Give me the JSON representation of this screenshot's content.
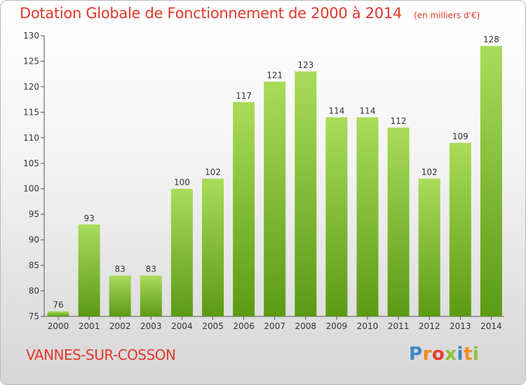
{
  "header": {
    "title": "Dotation Globale de Fonctionnement de 2000 à 2014",
    "unit": "(en milliers d'€)"
  },
  "footer": {
    "commune": "VANNES-SUR-COSSON",
    "logo": [
      "P",
      "r",
      "o",
      "x",
      "i",
      "t",
      "i"
    ]
  },
  "colors": {
    "title": "#e2372b",
    "bar_light": "#a9dc5a",
    "bar_dark": "#5c9a14",
    "axis": "#555555"
  },
  "chart_data": {
    "type": "bar",
    "title": "Dotation Globale de Fonctionnement de 2000 à 2014",
    "subtitle": "(en milliers d'€)",
    "xlabel": "",
    "ylabel": "",
    "categories": [
      "2000",
      "2001",
      "2002",
      "2003",
      "2004",
      "2005",
      "2006",
      "2007",
      "2008",
      "2009",
      "2010",
      "2011",
      "2012",
      "2013",
      "2014"
    ],
    "values": [
      76,
      93,
      83,
      83,
      100,
      102,
      117,
      121,
      123,
      114,
      114,
      112,
      102,
      109,
      128
    ],
    "ylim": [
      75,
      130
    ],
    "yticks": [
      75,
      80,
      85,
      90,
      95,
      100,
      105,
      110,
      115,
      120,
      125,
      130
    ],
    "grid": false,
    "legend": "none"
  }
}
